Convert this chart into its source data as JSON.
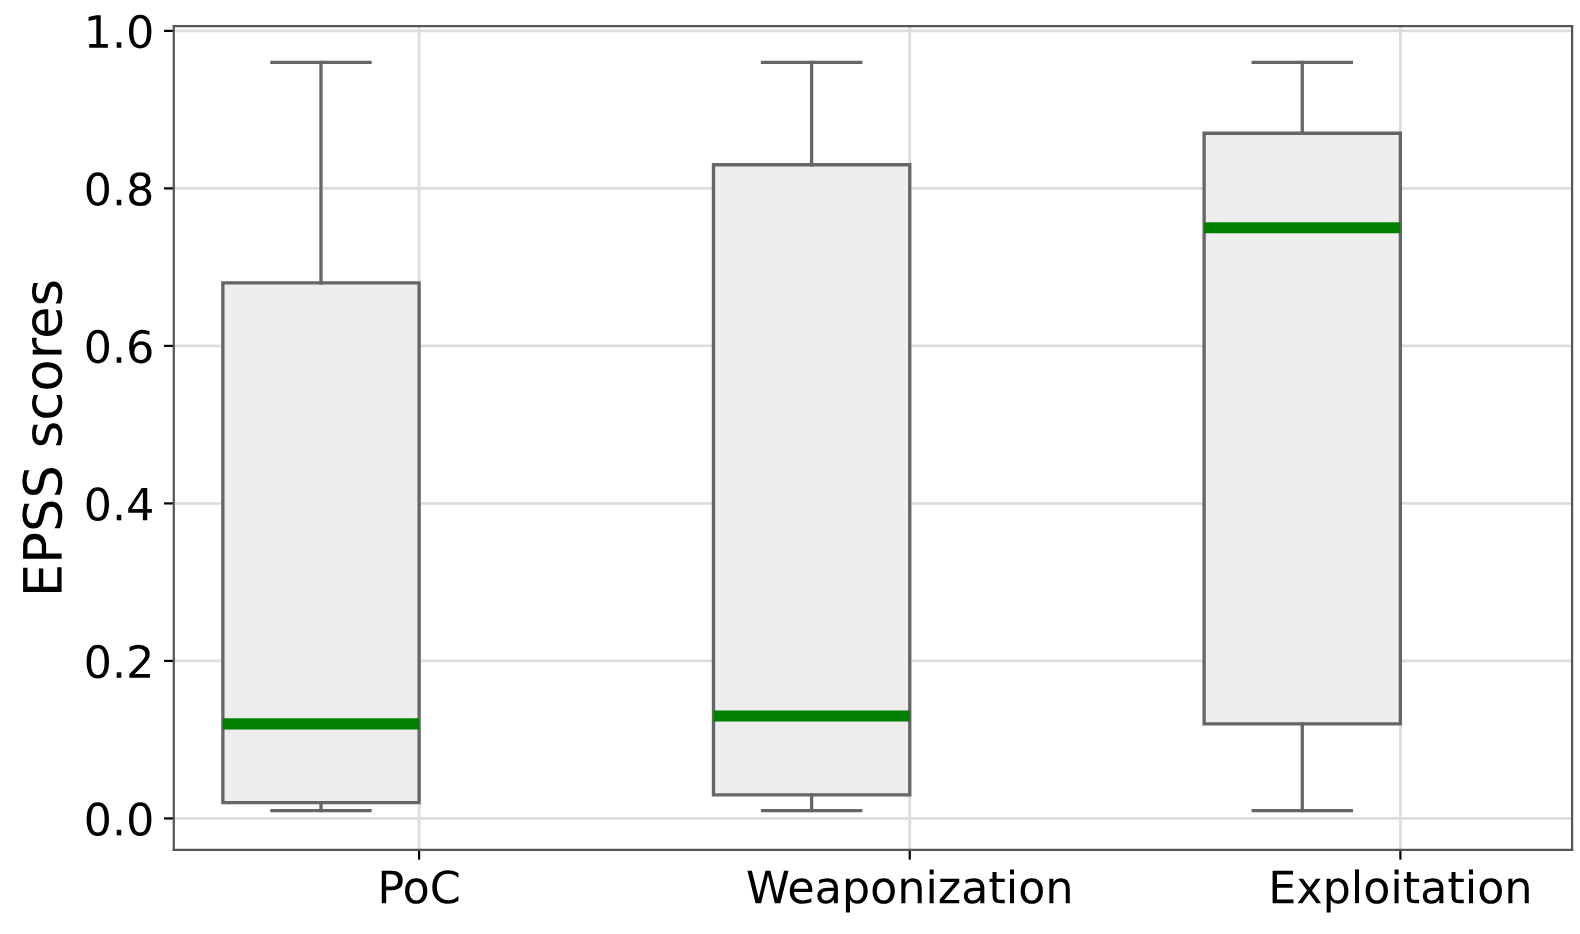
{
  "chart_data": {
    "type": "box",
    "ylabel": "EPSS scores",
    "categories": [
      "PoC",
      "Weaponization",
      "Exploitation"
    ],
    "boxes": [
      {
        "low": 0.01,
        "q1": 0.02,
        "median": 0.12,
        "q3": 0.68,
        "high": 0.96
      },
      {
        "low": 0.01,
        "q1": 0.03,
        "median": 0.13,
        "q3": 0.83,
        "high": 0.96
      },
      {
        "low": 0.01,
        "q1": 0.12,
        "median": 0.75,
        "q3": 0.87,
        "high": 0.96
      }
    ],
    "colors": [
      "#efeeef",
      "#efeeef",
      "#efeeef"
    ],
    "ylim": [
      -0.04,
      1.006
    ],
    "yticks": [
      {
        "value": 0,
        "label": "0.0"
      },
      0.2,
      0.4,
      0.6,
      0.8,
      {
        "value": 1,
        "label": "1.0"
      }
    ],
    "grid": true
  }
}
